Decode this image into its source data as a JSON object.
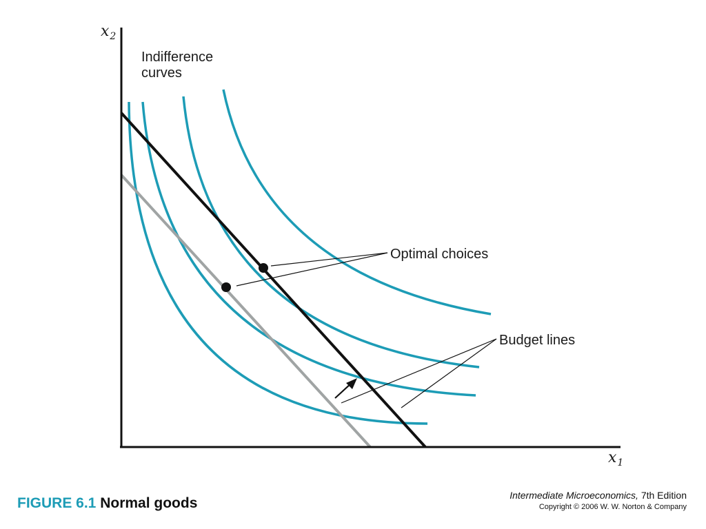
{
  "diagram": {
    "x_axis_label": "x",
    "x_axis_subscript": "1",
    "y_axis_label": "x",
    "y_axis_subscript": "2",
    "indifference_label_line1": "Indifference",
    "indifference_label_line2": "curves",
    "optimal_label": "Optimal choices",
    "budget_label": "Budget lines",
    "colors": {
      "indifference_curve": "#1d9cb6",
      "new_budget_line": "#111111",
      "old_budget_line": "#a0a4a4",
      "axes": "#111111"
    }
  },
  "caption": {
    "figure_number": "FIGURE 6.1",
    "title": "Normal goods"
  },
  "credit": {
    "book_title": "Intermediate Microeconomics,",
    "edition": "7th Edition",
    "copyright": "Copyright © 2006 W. W. Norton & Company"
  }
}
